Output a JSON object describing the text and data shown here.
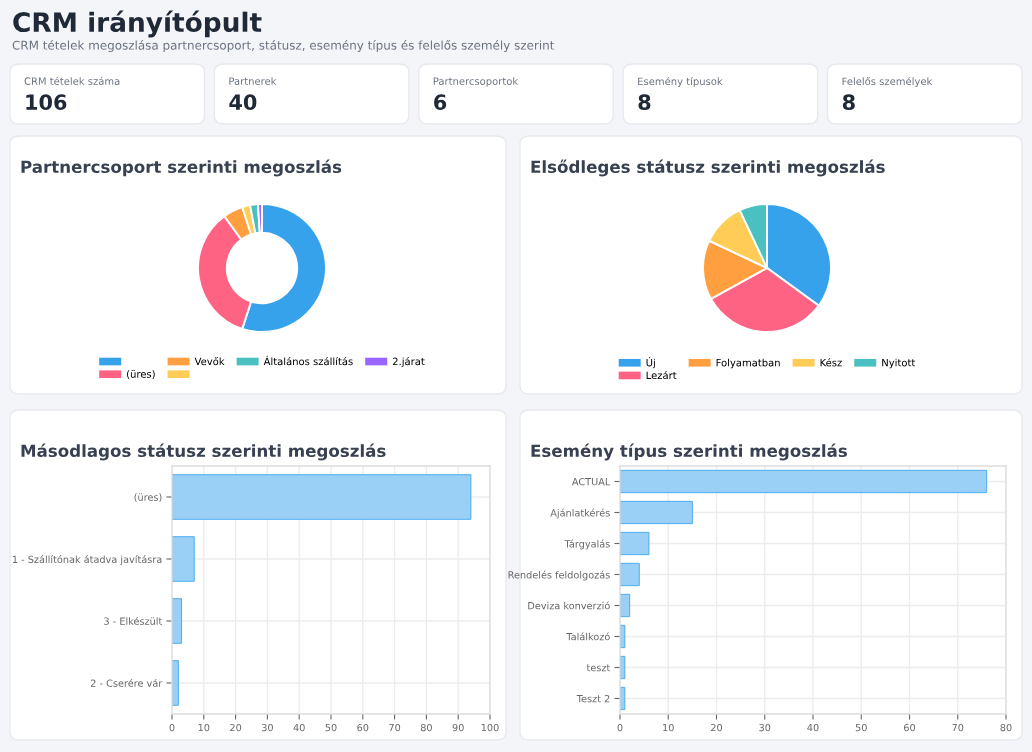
{
  "chart_data": [
    {
      "type": "other",
      "title": "CRM irányítópult",
      "subtitle": "CRM tételek megoszlása partnercsoport, státusz, esemény típus és felelős személy szerint",
      "annotations": [
        "CRM tételek száma",
        "106",
        "Partnerek",
        "40",
        "Partnercsoportok",
        "6",
        "Esemény típusok",
        "8",
        "Felelős személyek",
        "8"
      ]
    },
    {
      "type": "donut",
      "title": "Partnercsoport szerinti megoszlás",
      "categories": [
        null,
        "(üres)",
        "Vevők",
        null,
        "Általános szállítás",
        "2.járat"
      ],
      "values": [
        55,
        35,
        5,
        2,
        2,
        1
      ],
      "colors": [
        "#36a2eb",
        "#ff6384",
        "#ff9f40",
        "#ffcd56",
        "#4bc0c0",
        "#9966ff"
      ],
      "legend": "bottom"
    },
    {
      "type": "pie",
      "title": "Elsődleges státusz szerinti megoszlás",
      "categories": [
        "Új",
        "Lezárt",
        "Folyamatban",
        "Kész",
        "Nyitott"
      ],
      "values": [
        35,
        32,
        15,
        11,
        7
      ],
      "colors": [
        "#36a2eb",
        "#ff6384",
        "#ff9f40",
        "#ffcd56",
        "#4bc0c0"
      ],
      "legend": "bottom"
    },
    {
      "type": "bar",
      "orientation": "horizontal",
      "title": "Másodlagos státusz szerinti megoszlás",
      "categories": [
        "(üres)",
        "1 - Szállítónak átadva javításra",
        "3 - Elkészült",
        "2 - Cserére vár"
      ],
      "values": [
        94,
        7,
        3,
        2
      ],
      "color": "#9ad0f5",
      "xlim": [
        0,
        100
      ],
      "xticks": [
        0,
        10,
        20,
        30,
        40,
        50,
        60,
        70,
        80,
        90,
        100
      ],
      "grid": true
    },
    {
      "type": "bar",
      "orientation": "horizontal",
      "title": "Esemény típus szerinti megoszlás",
      "categories": [
        "ACTUAL",
        "Ajánlatkérés",
        "Tárgyalás",
        "Rendelés feldolgozás",
        "Deviza konverzió",
        "Találkozó",
        "teszt",
        "Teszt 2"
      ],
      "values": [
        76,
        15,
        6,
        4,
        2,
        1,
        1,
        1
      ],
      "color": "#9ad0f5",
      "xlim": [
        0,
        80
      ],
      "xticks": [
        0,
        10,
        20,
        30,
        40,
        50,
        60,
        70,
        80
      ],
      "grid": true
    }
  ]
}
